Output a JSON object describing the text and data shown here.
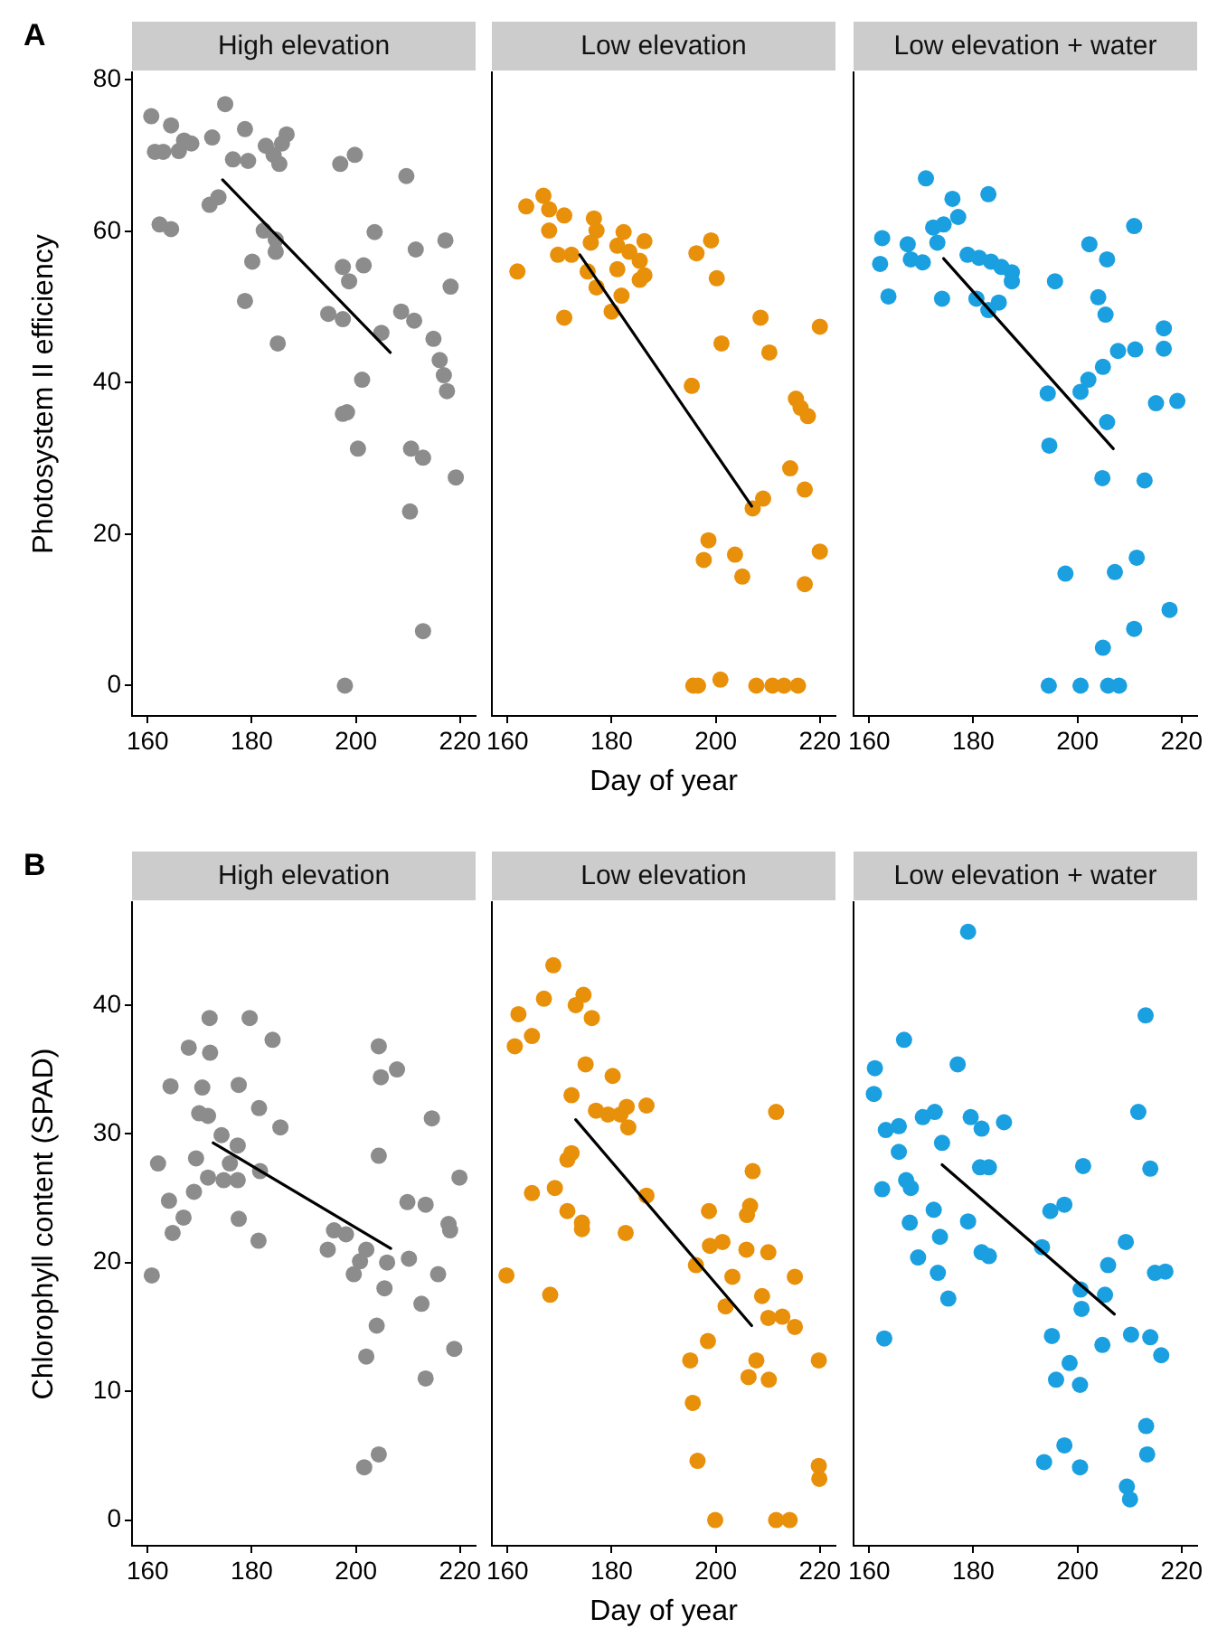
{
  "chart_data": [
    {
      "type": "scatter",
      "title": "High elevation",
      "ylabel": "Photosystem II efficiency",
      "annotations": [
        "A"
      ],
      "xlim": [
        157,
        223
      ],
      "xticks": [
        160,
        180,
        200,
        220
      ],
      "ylim": [
        -4,
        81
      ],
      "yticks": [
        0,
        20,
        40,
        60,
        80
      ],
      "marker": "circle",
      "series": [
        {
          "color": "#8c8c8c",
          "x": [
            160.7,
            161.4,
            163,
            164.5,
            166,
            167,
            168.4,
            162.3,
            164.5,
            172.4,
            174.9,
            176.4,
            178.7,
            179.3,
            171.9,
            173.6,
            182.7,
            184.2,
            185.3,
            186.7,
            185.8,
            182.3,
            184.6,
            184.6,
            180.1,
            178.7,
            185,
            197,
            199.8,
            197.5,
            198.7,
            201.5,
            203.6,
            194.7,
            197.5,
            204.9,
            197.5,
            198.3,
            201.2,
            200.4,
            197.9,
            209.7,
            211.5,
            208.7,
            211.2,
            214.9,
            216.1,
            216.9,
            217.5,
            217.2,
            218.2,
            219.2,
            210.6,
            212.9,
            210.4,
            212.9
          ],
          "values": [
            75.2,
            70.5,
            70.5,
            74,
            70.6,
            72,
            71.6,
            60.9,
            60.3,
            72.4,
            76.8,
            69.5,
            73.5,
            69.3,
            63.5,
            64.5,
            71.3,
            70.1,
            68.9,
            72.8,
            71.6,
            60.1,
            58.9,
            57.3,
            56,
            50.8,
            45.2,
            68.9,
            70.1,
            55.3,
            53.4,
            55.5,
            59.9,
            49.1,
            48.4,
            46.6,
            35.9,
            36.1,
            40.4,
            31.3,
            0,
            67.3,
            57.6,
            49.4,
            48.2,
            45.8,
            43,
            41,
            38.9,
            58.8,
            52.7,
            27.5,
            31.3,
            30.1,
            23,
            7.2
          ]
        },
        {
          "type": "line",
          "marker": "none",
          "color": "#000000",
          "x": [
            174.4,
            206.6
          ],
          "values": [
            66.8,
            44.0
          ]
        }
      ]
    },
    {
      "type": "scatter",
      "title": "Low elevation",
      "xlabel": "Day of year",
      "tick_labels": "x",
      "xlim": [
        157,
        223
      ],
      "xticks": [
        160,
        180,
        200,
        220
      ],
      "ylim": [
        -4,
        81
      ],
      "yticks": [
        0,
        20,
        40,
        60,
        80
      ],
      "marker": "circle",
      "series": [
        {
          "color": "#e8900a",
          "x": [
            161.9,
            163.6,
            166.9,
            168,
            168,
            170.9,
            169.7,
            172.3,
            170.9,
            176.6,
            177.1,
            176,
            175.4,
            177.1,
            180,
            181.1,
            181.9,
            182.3,
            181.1,
            183.4,
            186.3,
            185.4,
            186.3,
            185.4,
            196.3,
            199.1,
            200.2,
            201.1,
            195.4,
            208.6,
            210.3,
            215.4,
            216.3,
            217.7,
            214.3,
            217.1,
            220,
            209.1,
            207.1,
            198.6,
            197.7,
            203.7,
            205.1,
            220,
            217.1,
            195.7,
            196.6,
            200.9,
            207.8,
            210.9,
            213.1,
            215.8
          ],
          "values": [
            54.7,
            63.3,
            64.7,
            62.9,
            60.1,
            62.1,
            56.9,
            56.9,
            48.6,
            61.7,
            60.1,
            58.5,
            54.7,
            52.6,
            49.4,
            55,
            51.5,
            59.9,
            58.1,
            57.3,
            58.7,
            56.1,
            54.2,
            53.6,
            57.1,
            58.8,
            53.8,
            45.2,
            39.6,
            48.6,
            44,
            37.9,
            36.7,
            35.6,
            28.7,
            25.9,
            47.4,
            24.7,
            23.4,
            19.2,
            16.6,
            17.3,
            14.4,
            17.7,
            13.4,
            0,
            0,
            0.8,
            0,
            0,
            0,
            0
          ]
        },
        {
          "type": "line",
          "marker": "none",
          "color": "#000000",
          "x": [
            173.9,
            206.9
          ],
          "values": [
            56.9,
            23.7
          ]
        }
      ]
    },
    {
      "type": "scatter",
      "title": "Low elevation + water",
      "tick_labels": "x",
      "xlim": [
        157,
        223
      ],
      "xticks": [
        160,
        180,
        200,
        220
      ],
      "ylim": [
        -4,
        81
      ],
      "yticks": [
        0,
        20,
        40,
        60,
        80
      ],
      "marker": "circle",
      "series": [
        {
          "color": "#1a9fe0",
          "x": [
            170.9,
            176,
            182.9,
            162.5,
            162.1,
            163.7,
            167.4,
            168,
            170.3,
            172.3,
            173.1,
            174.3,
            177.1,
            174,
            178.9,
            181.1,
            183.4,
            185.4,
            187.4,
            187.4,
            180.6,
            182.9,
            184.9,
            195.7,
            202.3,
            205.7,
            210.9,
            204,
            205.4,
            194.3,
            200.6,
            202.1,
            204.9,
            207.8,
            211.1,
            216.6,
            216.6,
            215.1,
            219.2,
            205.7,
            194.6,
            204.8,
            212.9,
            197.7,
            207.2,
            211.4,
            217.7,
            210.9,
            204.9,
            194.5,
            200.6,
            205.9,
            208
          ],
          "values": [
            67,
            64.3,
            64.9,
            59.1,
            55.7,
            51.4,
            58.3,
            56.3,
            55.9,
            60.5,
            58.5,
            60.9,
            61.9,
            51.1,
            56.9,
            56.5,
            56,
            55.3,
            54.6,
            53.4,
            51.1,
            49.6,
            50.6,
            53.4,
            58.3,
            56.3,
            60.7,
            51.3,
            49,
            38.6,
            38.8,
            40.4,
            42.1,
            44.2,
            44.4,
            47.2,
            44.5,
            37.3,
            37.6,
            34.8,
            31.7,
            27.4,
            27.1,
            14.8,
            15,
            16.9,
            10,
            7.5,
            5,
            0,
            0,
            0,
            0
          ]
        },
        {
          "type": "line",
          "marker": "none",
          "color": "#000000",
          "x": [
            174.3,
            206.9
          ],
          "values": [
            56.4,
            31.3
          ]
        }
      ]
    },
    {
      "type": "scatter",
      "title": "High elevation",
      "ylabel": "Chlorophyll content (SPAD)",
      "annotations": [
        "B"
      ],
      "xlim": [
        157,
        223
      ],
      "xticks": [
        160,
        180,
        200,
        220
      ],
      "ylim": [
        -2,
        48
      ],
      "yticks": [
        0,
        10,
        20,
        30,
        40
      ],
      "marker": "circle",
      "series": [
        {
          "color": "#8c8c8c",
          "x": [
            160.8,
            162,
            164.4,
            164.1,
            164.8,
            166.9,
            167.9,
            168.9,
            169.3,
            170.5,
            169.9,
            171.9,
            172,
            171.6,
            171.6,
            174.2,
            174.6,
            175.8,
            177.3,
            177.5,
            177.3,
            177.5,
            179.6,
            181.4,
            181.6,
            181.3,
            184,
            185.5,
            194.6,
            195.8,
            198.1,
            199.6,
            200.8,
            202,
            201.6,
            202,
            204.4,
            204.8,
            204.4,
            204,
            204.4,
            205.5,
            206,
            207.9,
            209.9,
            210.2,
            212.6,
            213.4,
            213.4,
            214.6,
            215.8,
            217.8,
            218.1,
            219.9,
            218.9
          ],
          "values": [
            19,
            27.7,
            33.7,
            24.8,
            22.3,
            23.5,
            36.7,
            25.5,
            28.1,
            33.6,
            31.6,
            39,
            36.3,
            31.4,
            26.6,
            29.9,
            26.4,
            27.7,
            29.1,
            33.8,
            26.4,
            23.4,
            39,
            32,
            27.1,
            21.7,
            37.3,
            30.5,
            21,
            22.5,
            22.2,
            19.1,
            20.1,
            21,
            4.1,
            12.7,
            36.8,
            34.4,
            28.3,
            15.1,
            5.1,
            18,
            20,
            35,
            24.7,
            20.3,
            16.8,
            11,
            24.5,
            31.2,
            19.1,
            23,
            22.5,
            26.6,
            13.3
          ]
        },
        {
          "type": "line",
          "marker": "none",
          "color": "#000000",
          "x": [
            172.6,
            206.7
          ],
          "values": [
            29.3,
            21.1
          ]
        }
      ]
    },
    {
      "type": "scatter",
      "title": "Low elevation",
      "xlabel": "Day of year",
      "tick_labels": "x",
      "xlim": [
        157,
        223
      ],
      "xticks": [
        160,
        180,
        200,
        220
      ],
      "ylim": [
        -2,
        48
      ],
      "yticks": [
        0,
        10,
        20,
        30,
        40
      ],
      "marker": "circle",
      "series": [
        {
          "color": "#e8900a",
          "x": [
            168.8,
            162.1,
            161.4,
            164.7,
            167,
            173.1,
            174.6,
            176.2,
            175,
            180.2,
            172.3,
            177,
            179.3,
            181.7,
            182.9,
            183.2,
            186.7,
            171.5,
            172.3,
            164.7,
            169.1,
            171.5,
            174.3,
            174.3,
            182.7,
            186.7,
            159.8,
            168.2,
            211.6,
            207.1,
            206.6,
            206,
            198.7,
            198.9,
            201.3,
            205.9,
            210.1,
            196.2,
            203.2,
            215.2,
            208.9,
            201.9,
            210.1,
            212.8,
            215.2,
            198.5,
            195.1,
            207.8,
            206.3,
            210.2,
            219.8,
            195.6,
            196.5,
            219.8,
            219.9,
            199.9,
            211.6,
            214.2
          ],
          "values": [
            43.1,
            39.3,
            36.8,
            37.6,
            40.5,
            40,
            40.8,
            39,
            35.4,
            34.5,
            33,
            31.8,
            31.5,
            31.5,
            32.1,
            30.5,
            32.2,
            28,
            28.5,
            25.4,
            25.8,
            24,
            23.1,
            22.6,
            22.3,
            25.2,
            19,
            17.5,
            31.7,
            27.1,
            24.4,
            23.7,
            24,
            21.3,
            21.6,
            21,
            20.8,
            19.8,
            18.9,
            18.9,
            17.4,
            16.6,
            15.7,
            15.8,
            15,
            13.9,
            12.4,
            12.4,
            11.1,
            10.9,
            12.4,
            9.1,
            4.6,
            4.2,
            3.2,
            0,
            0,
            0
          ]
        },
        {
          "type": "line",
          "marker": "none",
          "color": "#000000",
          "x": [
            173.1,
            206.9
          ],
          "values": [
            31.1,
            15.1
          ]
        }
      ]
    },
    {
      "type": "scatter",
      "title": "Low elevation + water",
      "tick_labels": "x",
      "xlim": [
        157,
        223
      ],
      "xticks": [
        160,
        180,
        200,
        220
      ],
      "ylim": [
        -2,
        48
      ],
      "yticks": [
        0,
        10,
        20,
        30,
        40
      ],
      "marker": "circle",
      "series": [
        {
          "color": "#1a9fe0",
          "x": [
            179,
            213.1,
            166.7,
            161.1,
            160.9,
            177,
            162.5,
            163.2,
            165.7,
            165.7,
            170.3,
            172.6,
            174,
            179.5,
            181.6,
            185.9,
            181.3,
            183,
            211.7,
            214,
            201.1,
            167.1,
            168,
            172.4,
            167.8,
            173.6,
            179,
            169.4,
            173.2,
            175.2,
            181.6,
            183,
            194.8,
            197.5,
            193.2,
            209.3,
            205.9,
            200.6,
            200.8,
            205.3,
            214.9,
            216.9,
            162.9,
            195.1,
            204.8,
            210.3,
            214,
            216.1,
            198.5,
            195.9,
            200.5,
            213.2,
            213.4,
            197.5,
            193.6,
            200.5,
            209.5,
            210.1
          ],
          "values": [
            45.7,
            39.2,
            37.3,
            35.1,
            33.1,
            35.4,
            25.7,
            30.3,
            30.6,
            28.6,
            31.3,
            31.7,
            29.3,
            31.3,
            30.4,
            30.9,
            27.4,
            27.4,
            31.7,
            27.3,
            27.5,
            26.4,
            25.8,
            24.1,
            23.1,
            22,
            23.2,
            20.4,
            19.2,
            17.2,
            20.8,
            20.5,
            24,
            24.5,
            21.2,
            21.6,
            19.8,
            17.9,
            16.4,
            17.5,
            19.2,
            19.3,
            14.1,
            14.3,
            13.6,
            14.4,
            14.2,
            12.8,
            12.2,
            10.9,
            10.5,
            7.3,
            5.1,
            5.8,
            4.5,
            4.1,
            2.6,
            1.6
          ]
        },
        {
          "type": "line",
          "marker": "none",
          "color": "#000000",
          "x": [
            174,
            207.1
          ],
          "values": [
            27.6,
            16
          ]
        }
      ]
    }
  ]
}
